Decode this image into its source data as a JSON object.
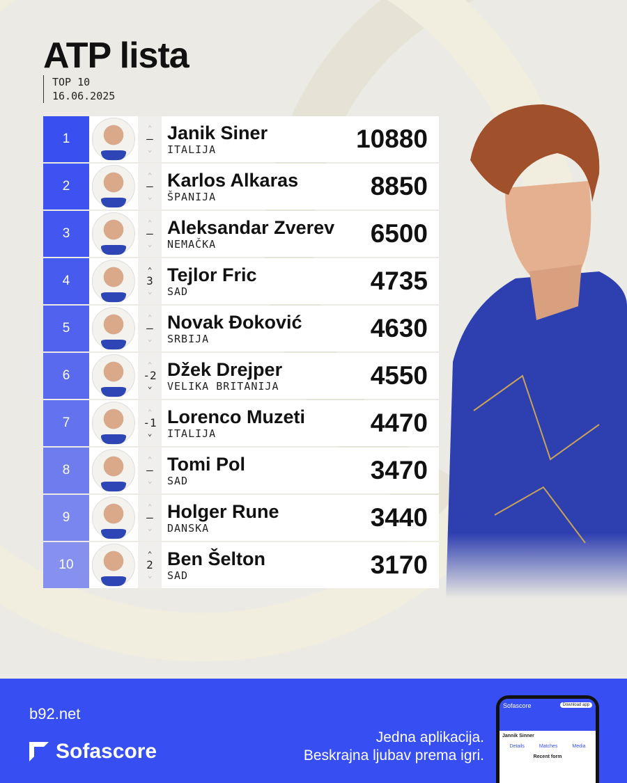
{
  "header": {
    "title": "ATP lista",
    "subtitle": "TOP 10",
    "date": "16.06.2025"
  },
  "colors": {
    "accent": "#374ef2",
    "background": "#ebeae4"
  },
  "rankings": [
    {
      "rank": "1",
      "name": "Janik Siner",
      "country": "ITALIJA",
      "change": "–",
      "direction": "none",
      "points": "10880"
    },
    {
      "rank": "2",
      "name": "Karlos Alkaras",
      "country": "ŠPANIJA",
      "change": "–",
      "direction": "none",
      "points": "8850"
    },
    {
      "rank": "3",
      "name": "Aleksandar Zverev",
      "country": "NEMAČKA",
      "change": "–",
      "direction": "none",
      "points": "6500"
    },
    {
      "rank": "4",
      "name": "Tejlor Fric",
      "country": "SAD",
      "change": "3",
      "direction": "up",
      "points": "4735"
    },
    {
      "rank": "5",
      "name": "Novak Đoković",
      "country": "SRBIJA",
      "change": "–",
      "direction": "none",
      "points": "4630"
    },
    {
      "rank": "6",
      "name": "Džek Drejper",
      "country": "VELIKA BRITANIJA",
      "change": "-2",
      "direction": "down",
      "points": "4550"
    },
    {
      "rank": "7",
      "name": "Lorenco Muzeti",
      "country": "ITALIJA",
      "change": "-1",
      "direction": "down",
      "points": "4470"
    },
    {
      "rank": "8",
      "name": "Tomi Pol",
      "country": "SAD",
      "change": "–",
      "direction": "none",
      "points": "3470"
    },
    {
      "rank": "9",
      "name": "Holger Rune",
      "country": "DANSKA",
      "change": "–",
      "direction": "none",
      "points": "3440"
    },
    {
      "rank": "10",
      "name": "Ben Šelton",
      "country": "SAD",
      "change": "2",
      "direction": "up",
      "points": "3170"
    }
  ],
  "footer": {
    "brand1": "b92.net",
    "brand2": "Sofascore",
    "slogan_line1": "Jedna aplikacija.",
    "slogan_line2": "Beskrajna ljubav prema igri.",
    "phone": {
      "app": "Sofascore",
      "download": "Download app",
      "player": "Jannik Sinner",
      "tabs": [
        "Details",
        "Matches",
        "Media"
      ],
      "section": "Recent form"
    }
  }
}
